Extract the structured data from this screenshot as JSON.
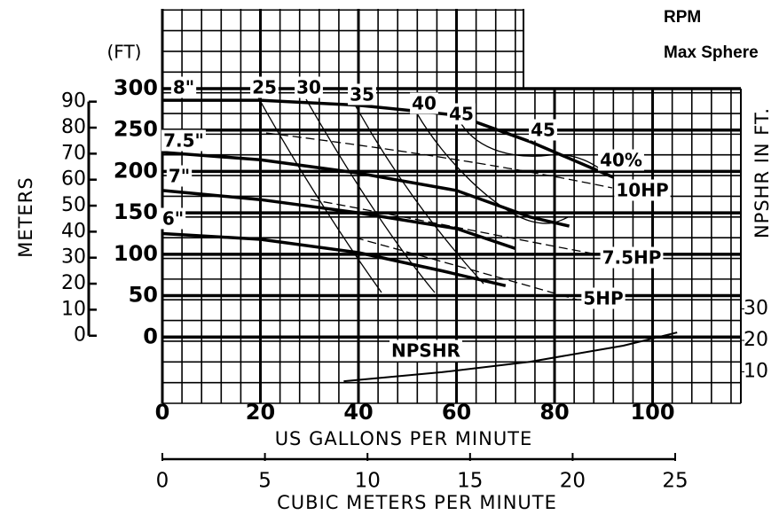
{
  "chart_data": {
    "type": "line",
    "title": "RPM",
    "subtitle": "Max Sphere",
    "x_label": "US GALLONS PER MINUTE",
    "y_label": "(FT)",
    "y2_label": "NPSHR IN FT.",
    "xlim": [
      0,
      118
    ],
    "xticks": [
      0,
      20,
      40,
      60,
      80,
      100
    ],
    "ylim": [
      -80,
      300
    ],
    "yticks": [
      0,
      50,
      100,
      150,
      200,
      250,
      300
    ],
    "y2lim": [
      0,
      100
    ],
    "y2ticks": [
      10,
      20,
      30
    ],
    "grid": true,
    "meters_axis": {
      "label": "METERS",
      "lim": [
        -26,
        95
      ],
      "ticks": [
        0,
        10,
        20,
        30,
        40,
        50,
        60,
        70,
        80,
        90
      ]
    },
    "cubic_meters_axis": {
      "label": "CUBIC METERS PER MINUTE",
      "lim": [
        0,
        28.2
      ],
      "ticks": [
        0,
        5,
        10,
        15,
        20,
        25
      ]
    },
    "series": [
      {
        "name": "8\"",
        "color": "#000000",
        "x": [
          0,
          20,
          40,
          60,
          75,
          92
        ],
        "values": [
          286,
          286,
          280,
          268,
          236,
          193
        ]
      },
      {
        "name": "7.5\"",
        "color": "#000000",
        "x": [
          0,
          20,
          40,
          60,
          75,
          83
        ],
        "values": [
          223,
          214,
          198,
          177,
          145,
          134
        ]
      },
      {
        "name": "7\"",
        "color": "#000000",
        "x": [
          0,
          20,
          40,
          60,
          72
        ],
        "values": [
          177,
          166,
          150,
          131,
          107
        ]
      },
      {
        "name": "6\"",
        "color": "#000000",
        "x": [
          0,
          20,
          40,
          57,
          70
        ],
        "values": [
          125,
          118,
          102,
          80,
          62
        ]
      },
      {
        "name": "NPSHR",
        "color": "#000000",
        "axis": "y2",
        "x": [
          37,
          57,
          75,
          94,
          105
        ],
        "values": [
          7,
          9.9,
          13.2,
          18.3,
          22.5
        ]
      }
    ],
    "annotations": [
      "25",
      "30",
      "35",
      "40",
      "45",
      "45",
      "40%",
      "10HP",
      "7.5HP",
      "5HP"
    ]
  }
}
